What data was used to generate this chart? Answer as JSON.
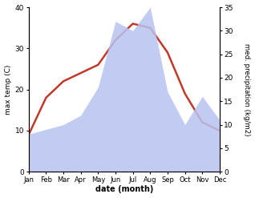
{
  "months": [
    "Jan",
    "Feb",
    "Mar",
    "Apr",
    "May",
    "Jun",
    "Jul",
    "Aug",
    "Sep",
    "Oct",
    "Nov",
    "Dec"
  ],
  "month_x": [
    1,
    2,
    3,
    4,
    5,
    6,
    7,
    8,
    9,
    10,
    11,
    12
  ],
  "temperature": [
    9,
    18,
    22,
    24,
    26,
    32,
    36,
    35,
    29,
    19,
    12,
    10
  ],
  "precipitation": [
    8,
    9,
    10,
    12,
    18,
    32,
    30,
    35,
    17,
    10,
    16,
    11
  ],
  "temp_color": "#c0392b",
  "precip_color": "#b8c4f0",
  "temp_ylim": [
    0,
    40
  ],
  "precip_ylim": [
    0,
    35
  ],
  "temp_yticks": [
    0,
    10,
    20,
    30,
    40
  ],
  "precip_yticks": [
    0,
    5,
    10,
    15,
    20,
    25,
    30,
    35
  ],
  "xlabel": "date (month)",
  "ylabel_left": "max temp (C)",
  "ylabel_right": "med. precipitation (kg/m2)",
  "fig_width": 3.18,
  "fig_height": 2.47,
  "dpi": 100
}
